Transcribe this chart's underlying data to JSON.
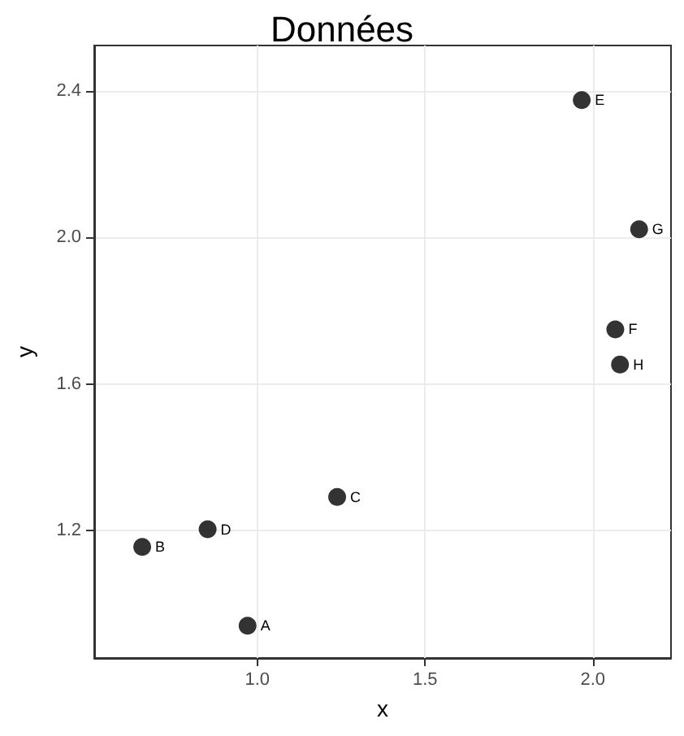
{
  "chart_data": {
    "type": "scatter",
    "title": "Données",
    "xlabel": "x",
    "ylabel": "y",
    "x": [
      0.971,
      0.657,
      1.238,
      0.852,
      1.967,
      2.067,
      2.138,
      2.081
    ],
    "series": [
      {
        "color": "#000000",
        "values": [
          0.941,
          1.156,
          1.292,
          1.204,
          2.374,
          1.749,
          2.022,
          1.653
        ]
      }
    ],
    "xlim": [
      0.514,
      2.233
    ],
    "ylim": [
      0.853,
      2.523
    ],
    "xticks": [
      {
        "value": 1,
        "label": "1.0"
      },
      1.5,
      {
        "value": 2,
        "label": "2.0"
      }
    ],
    "yticks": [
      1.2,
      1.6,
      {
        "value": 2,
        "label": "2.0"
      },
      2.4
    ],
    "grid": true,
    "marker": "circle",
    "annotations": [
      {
        "text": "A",
        "x": 0.971,
        "y": 0.941
      },
      {
        "text": "B",
        "x": 0.657,
        "y": 1.156
      },
      {
        "text": "C",
        "x": 1.238,
        "y": 1.292
      },
      {
        "text": "D",
        "x": 0.852,
        "y": 1.204
      },
      {
        "text": "E",
        "x": 1.967,
        "y": 2.374
      },
      {
        "text": "F",
        "x": 2.067,
        "y": 1.749
      },
      {
        "text": "G",
        "x": 2.138,
        "y": 2.022
      },
      {
        "text": "H",
        "x": 2.081,
        "y": 1.653
      }
    ]
  }
}
